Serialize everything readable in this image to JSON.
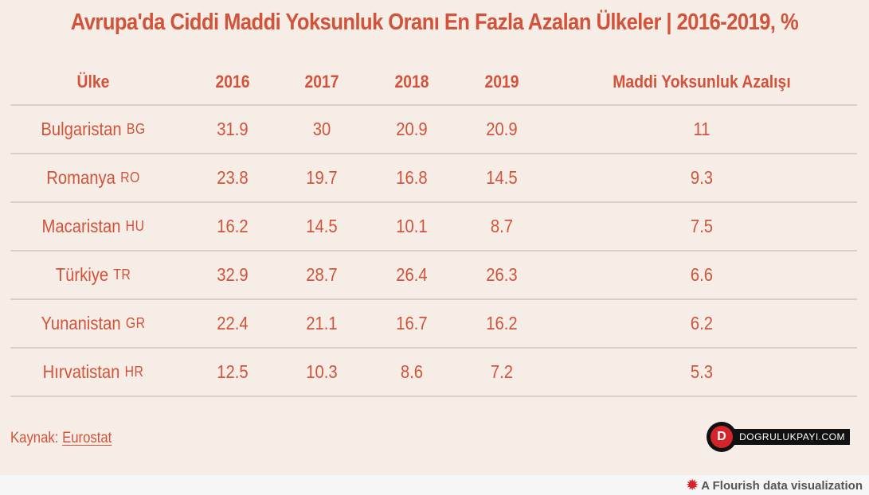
{
  "title": "Avrupa'da Ciddi Maddi Yoksunluk Oranı En Fazla Azalan Ülkeler | 2016-2019, %",
  "table": {
    "headers": [
      "Ülke",
      "2016",
      "2017",
      "2018",
      "2019",
      "Maddi Yoksunluk Azalışı"
    ],
    "rows": [
      {
        "country": "Bulgaristan",
        "code": "BG",
        "v2016": "31.9",
        "v2017": "30",
        "v2018": "20.9",
        "v2019": "20.9",
        "decrease": "11"
      },
      {
        "country": "Romanya",
        "code": "RO",
        "v2016": "23.8",
        "v2017": "19.7",
        "v2018": "16.8",
        "v2019": "14.5",
        "decrease": "9.3"
      },
      {
        "country": "Macaristan",
        "code": "HU",
        "v2016": "16.2",
        "v2017": "14.5",
        "v2018": "10.1",
        "v2019": "8.7",
        "decrease": "7.5"
      },
      {
        "country": "Türkiye",
        "code": "TR",
        "v2016": "32.9",
        "v2017": "28.7",
        "v2018": "26.4",
        "v2019": "26.3",
        "decrease": "6.6"
      },
      {
        "country": "Yunanistan",
        "code": "GR",
        "v2016": "22.4",
        "v2017": "21.1",
        "v2018": "16.7",
        "v2019": "16.2",
        "decrease": "6.2"
      },
      {
        "country": "Hırvatistan",
        "code": "HR",
        "v2016": "12.5",
        "v2017": "10.3",
        "v2018": "8.6",
        "v2019": "7.2",
        "decrease": "5.3"
      }
    ]
  },
  "source": {
    "label": "Kaynak:",
    "link_text": "Eurostat"
  },
  "logo": {
    "letter": "D",
    "text": "DOGRULUKPAYI.COM"
  },
  "footer": {
    "icon": "flourish-icon",
    "text": "A Flourish data visualization"
  },
  "colors": {
    "accent": "#d2533a",
    "background": "#f5ede6",
    "divider": "#dccfc3",
    "logo_red": "#d6252a"
  },
  "chart_data": {
    "type": "table",
    "title": "Avrupa'da Ciddi Maddi Yoksunluk Oranı En Fazla Azalan Ülkeler | 2016-2019, %",
    "columns": [
      "Ülke",
      "2016",
      "2017",
      "2018",
      "2019",
      "Maddi Yoksunluk Azalışı"
    ],
    "rows": [
      [
        "Bulgaristan BG",
        31.9,
        30,
        20.9,
        20.9,
        11
      ],
      [
        "Romanya RO",
        23.8,
        19.7,
        16.8,
        14.5,
        9.3
      ],
      [
        "Macaristan HU",
        16.2,
        14.5,
        10.1,
        8.7,
        7.5
      ],
      [
        "Türkiye TR",
        32.9,
        28.7,
        26.4,
        26.3,
        6.6
      ],
      [
        "Yunanistan GR",
        22.4,
        21.1,
        16.7,
        16.2,
        6.2
      ],
      [
        "Hırvatistan HR",
        12.5,
        10.3,
        8.6,
        7.2,
        5.3
      ]
    ],
    "source": "Eurostat"
  }
}
